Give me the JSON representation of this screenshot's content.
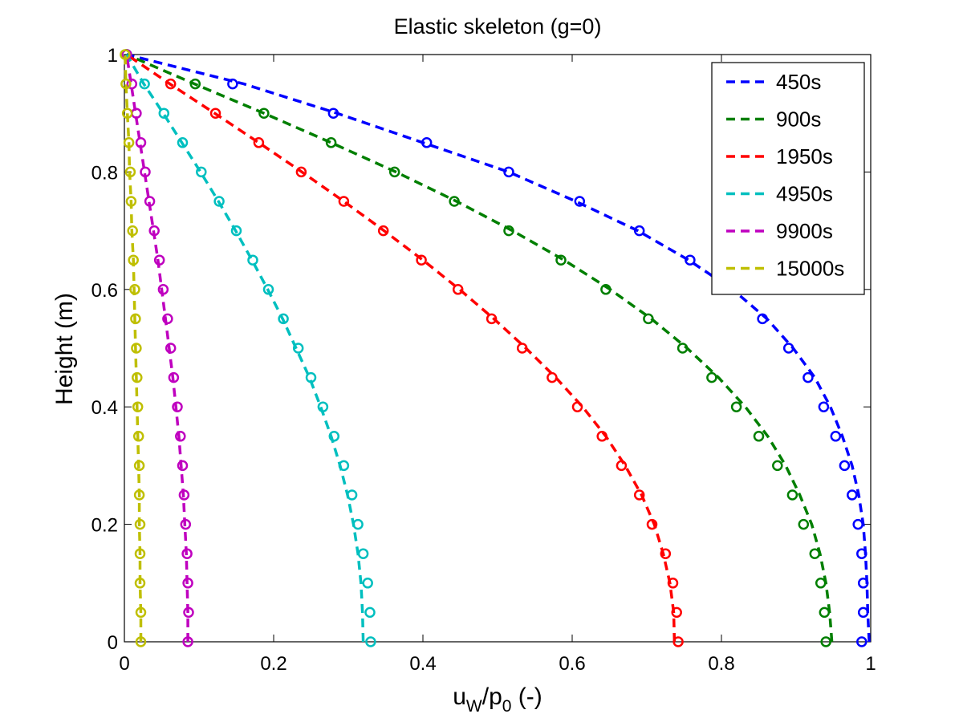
{
  "chart_data": {
    "type": "line",
    "title": "Elastic skeleton (g=0)",
    "xlabel": {
      "main": "u",
      "sub1": "W",
      "mid": "/p",
      "sub2": "0",
      "tail": " (-)"
    },
    "ylabel": "Height (m)",
    "xlim": [
      0,
      1
    ],
    "ylim": [
      0,
      1
    ],
    "xticks": [
      0,
      0.2,
      0.4,
      0.6,
      0.8,
      1
    ],
    "yticks": [
      0,
      0.2,
      0.4,
      0.6,
      0.8,
      1
    ],
    "xtick_labels": [
      "0",
      "0.2",
      "0.4",
      "0.6",
      "0.8",
      "1"
    ],
    "ytick_labels": [
      "0",
      "0.2",
      "0.4",
      "0.6",
      "0.8",
      "1"
    ],
    "grid": false,
    "legend_position": "top-right",
    "series": [
      {
        "name": "450s",
        "color": "#0000ff",
        "points_y": [
          0,
          0.05,
          0.1,
          0.15,
          0.2,
          0.25,
          0.3,
          0.35,
          0.4,
          0.45,
          0.5,
          0.55,
          0.6,
          0.65,
          0.7,
          0.75,
          0.8,
          0.85,
          0.9,
          0.95,
          1
        ],
        "points_x": [
          0.988,
          0.99,
          0.99,
          0.988,
          0.983,
          0.975,
          0.965,
          0.953,
          0.937,
          0.916,
          0.89,
          0.855,
          0.81,
          0.758,
          0.69,
          0.61,
          0.515,
          0.405,
          0.28,
          0.145,
          0.003
        ],
        "line_y": [
          0,
          0.05,
          0.1,
          0.15,
          0.2,
          0.25,
          0.3,
          0.35,
          0.4,
          0.45,
          0.5,
          0.55,
          0.6,
          0.65,
          0.7,
          0.75,
          0.8,
          0.85,
          0.9,
          0.95,
          1
        ],
        "line_x": [
          0.998,
          0.996,
          0.995,
          0.993,
          0.99,
          0.984,
          0.975,
          0.962,
          0.946,
          0.925,
          0.896,
          0.861,
          0.815,
          0.756,
          0.688,
          0.605,
          0.515,
          0.4,
          0.285,
          0.16,
          0.003
        ]
      },
      {
        "name": "900s",
        "color": "#007f00",
        "points_y": [
          0,
          0.05,
          0.1,
          0.15,
          0.2,
          0.25,
          0.3,
          0.35,
          0.4,
          0.45,
          0.5,
          0.55,
          0.6,
          0.65,
          0.7,
          0.75,
          0.8,
          0.85,
          0.9,
          0.95,
          1
        ],
        "points_x": [
          0.94,
          0.938,
          0.933,
          0.925,
          0.91,
          0.895,
          0.875,
          0.85,
          0.82,
          0.787,
          0.748,
          0.702,
          0.645,
          0.585,
          0.515,
          0.442,
          0.362,
          0.277,
          0.187,
          0.095,
          0.003
        ],
        "line_y": [
          0,
          0.05,
          0.1,
          0.15,
          0.2,
          0.25,
          0.3,
          0.35,
          0.4,
          0.45,
          0.5,
          0.55,
          0.6,
          0.65,
          0.7,
          0.75,
          0.8,
          0.85,
          0.9,
          0.95,
          1
        ],
        "line_x": [
          0.948,
          0.945,
          0.94,
          0.932,
          0.921,
          0.905,
          0.886,
          0.862,
          0.832,
          0.796,
          0.754,
          0.706,
          0.651,
          0.589,
          0.52,
          0.445,
          0.364,
          0.277,
          0.187,
          0.094,
          0.003
        ]
      },
      {
        "name": "1950s",
        "color": "#ff0000",
        "points_y": [
          0,
          0.05,
          0.1,
          0.15,
          0.2,
          0.25,
          0.3,
          0.35,
          0.4,
          0.45,
          0.5,
          0.55,
          0.6,
          0.65,
          0.7,
          0.75,
          0.8,
          0.85,
          0.9,
          0.95,
          1
        ],
        "points_x": [
          0.742,
          0.74,
          0.735,
          0.725,
          0.707,
          0.69,
          0.666,
          0.64,
          0.607,
          0.573,
          0.533,
          0.492,
          0.447,
          0.398,
          0.347,
          0.294,
          0.237,
          0.18,
          0.122,
          0.062,
          0.003
        ],
        "line_y": [
          0,
          0.05,
          0.1,
          0.15,
          0.2,
          0.25,
          0.3,
          0.35,
          0.4,
          0.45,
          0.5,
          0.55,
          0.6,
          0.65,
          0.7,
          0.75,
          0.8,
          0.85,
          0.9,
          0.95,
          1
        ],
        "line_x": [
          0.737,
          0.736,
          0.731,
          0.722,
          0.71,
          0.693,
          0.671,
          0.645,
          0.614,
          0.578,
          0.538,
          0.495,
          0.449,
          0.4,
          0.348,
          0.294,
          0.238,
          0.18,
          0.121,
          0.061,
          0.003
        ]
      },
      {
        "name": "4950s",
        "color": "#00bfbf",
        "points_y": [
          0,
          0.05,
          0.1,
          0.15,
          0.2,
          0.25,
          0.3,
          0.35,
          0.4,
          0.45,
          0.5,
          0.55,
          0.6,
          0.65,
          0.7,
          0.75,
          0.8,
          0.85,
          0.9,
          0.95,
          1
        ],
        "points_x": [
          0.33,
          0.329,
          0.326,
          0.32,
          0.313,
          0.305,
          0.294,
          0.281,
          0.266,
          0.25,
          0.233,
          0.213,
          0.193,
          0.172,
          0.15,
          0.127,
          0.103,
          0.078,
          0.053,
          0.027,
          0.003
        ],
        "line_y": [
          0,
          0.05,
          0.1,
          0.15,
          0.2,
          0.25,
          0.3,
          0.35,
          0.4,
          0.45,
          0.5,
          0.55,
          0.6,
          0.65,
          0.7,
          0.75,
          0.8,
          0.85,
          0.9,
          0.95,
          1
        ],
        "line_x": [
          0.32,
          0.319,
          0.317,
          0.313,
          0.307,
          0.299,
          0.289,
          0.277,
          0.263,
          0.248,
          0.23,
          0.212,
          0.192,
          0.171,
          0.149,
          0.126,
          0.102,
          0.077,
          0.052,
          0.026,
          0.003
        ]
      },
      {
        "name": "9900s",
        "color": "#bf00bf",
        "points_y": [
          0,
          0.05,
          0.1,
          0.15,
          0.2,
          0.25,
          0.3,
          0.35,
          0.4,
          0.45,
          0.5,
          0.55,
          0.6,
          0.65,
          0.7,
          0.75,
          0.8,
          0.85,
          0.9,
          0.95,
          1
        ],
        "points_x": [
          0.085,
          0.086,
          0.085,
          0.084,
          0.082,
          0.08,
          0.078,
          0.075,
          0.071,
          0.066,
          0.062,
          0.058,
          0.052,
          0.047,
          0.04,
          0.034,
          0.028,
          0.022,
          0.016,
          0.01,
          0.003
        ],
        "line_y": [
          0,
          0.05,
          0.1,
          0.15,
          0.2,
          0.25,
          0.3,
          0.35,
          0.4,
          0.45,
          0.5,
          0.55,
          0.6,
          0.65,
          0.7,
          0.75,
          0.8,
          0.85,
          0.9,
          0.95,
          1
        ],
        "line_x": [
          0.085,
          0.085,
          0.084,
          0.083,
          0.081,
          0.079,
          0.076,
          0.073,
          0.069,
          0.065,
          0.06,
          0.055,
          0.05,
          0.045,
          0.039,
          0.033,
          0.027,
          0.021,
          0.015,
          0.009,
          0.003
        ]
      },
      {
        "name": "15000s",
        "color": "#bfbf00",
        "points_y": [
          0,
          0.05,
          0.1,
          0.15,
          0.2,
          0.25,
          0.3,
          0.35,
          0.4,
          0.45,
          0.5,
          0.55,
          0.6,
          0.65,
          0.7,
          0.75,
          0.8,
          0.85,
          0.9,
          0.95,
          1
        ],
        "points_x": [
          0.022,
          0.022,
          0.021,
          0.021,
          0.021,
          0.02,
          0.02,
          0.019,
          0.018,
          0.017,
          0.016,
          0.015,
          0.014,
          0.012,
          0.011,
          0.009,
          0.008,
          0.006,
          0.004,
          0.002,
          0.001
        ],
        "line_y": [
          0,
          0.05,
          0.1,
          0.15,
          0.2,
          0.25,
          0.3,
          0.35,
          0.4,
          0.45,
          0.5,
          0.55,
          0.6,
          0.65,
          0.7,
          0.75,
          0.8,
          0.85,
          0.9,
          0.95,
          1
        ],
        "line_x": [
          0.022,
          0.022,
          0.021,
          0.021,
          0.02,
          0.02,
          0.019,
          0.018,
          0.017,
          0.016,
          0.015,
          0.014,
          0.013,
          0.012,
          0.01,
          0.009,
          0.007,
          0.006,
          0.004,
          0.002,
          0.001
        ]
      }
    ]
  }
}
